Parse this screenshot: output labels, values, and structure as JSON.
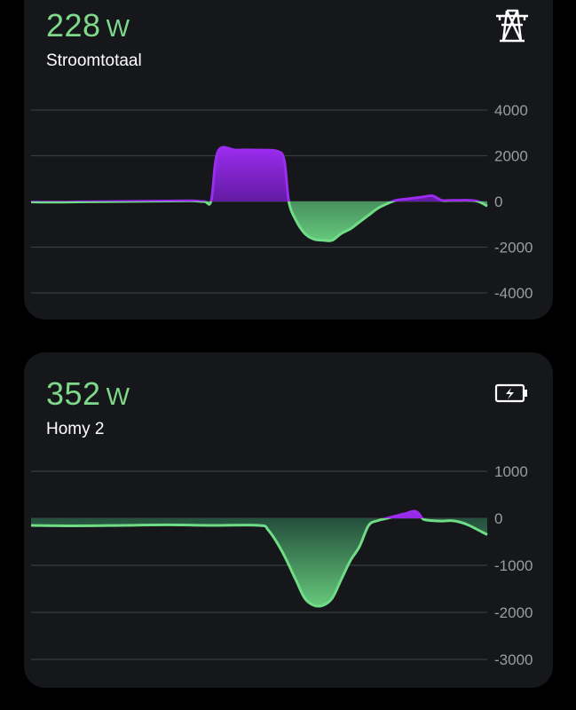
{
  "cards": [
    {
      "value": "228",
      "unit": "W",
      "label": "Stroomtotaal",
      "icon": "power-pylon-icon"
    },
    {
      "value": "352",
      "unit": "W",
      "label": "Homy 2",
      "icon": "battery-charging-icon"
    }
  ],
  "colors": {
    "positive": "#9b2cf0",
    "negative": "#6fdc86",
    "value_text": "#7ed98a",
    "card_bg": "#16171a"
  },
  "chart_data": [
    {
      "type": "area",
      "ylim": [
        -4000,
        4000
      ],
      "yticks": [
        "4000",
        "2000",
        "0",
        "-2000",
        "-4000"
      ],
      "x": [
        0,
        0.05,
        0.1,
        0.15,
        0.2,
        0.25,
        0.3,
        0.35,
        0.38,
        0.395,
        0.41,
        0.45,
        0.5,
        0.54,
        0.555,
        0.565,
        0.58,
        0.6,
        0.62,
        0.64,
        0.66,
        0.68,
        0.7,
        0.72,
        0.74,
        0.76,
        0.78,
        0.8,
        0.82,
        0.84,
        0.86,
        0.88,
        0.9,
        0.92,
        0.94,
        0.96,
        0.98,
        1.0
      ],
      "y": [
        -20,
        -30,
        -20,
        -10,
        0,
        10,
        20,
        30,
        0,
        50,
        2200,
        2250,
        2250,
        2200,
        1800,
        0,
        -800,
        -1400,
        -1650,
        -1700,
        -1700,
        -1400,
        -1200,
        -900,
        -600,
        -300,
        -100,
        50,
        100,
        150,
        200,
        250,
        50,
        50,
        50,
        50,
        0,
        -200
      ]
    },
    {
      "type": "area",
      "ylim": [
        -3000,
        1000
      ],
      "yticks": [
        "1000",
        "0",
        "-1000",
        "-2000",
        "-3000"
      ],
      "x": [
        0,
        0.1,
        0.2,
        0.3,
        0.4,
        0.5,
        0.52,
        0.55,
        0.58,
        0.6,
        0.62,
        0.64,
        0.66,
        0.68,
        0.7,
        0.72,
        0.74,
        0.76,
        0.78,
        0.8,
        0.82,
        0.84,
        0.85,
        0.86,
        0.88,
        0.9,
        0.92,
        0.94,
        0.96,
        1.0
      ],
      "y": [
        -150,
        -160,
        -150,
        -140,
        -150,
        -150,
        -250,
        -700,
        -1300,
        -1700,
        -1850,
        -1850,
        -1700,
        -1300,
        -900,
        -600,
        -150,
        -50,
        0,
        50,
        100,
        150,
        100,
        -20,
        -50,
        -60,
        -50,
        -80,
        -150,
        -350
      ]
    }
  ]
}
